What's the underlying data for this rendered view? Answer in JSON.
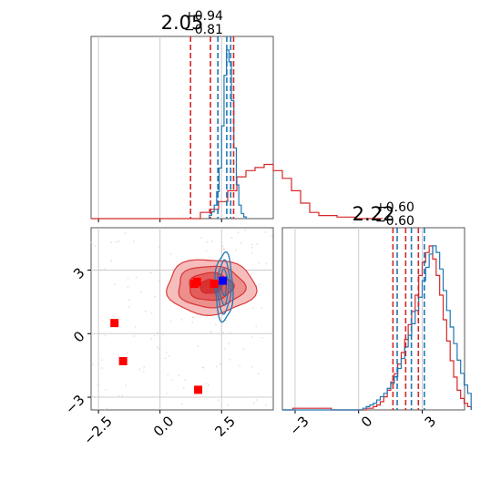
{
  "chart_data": {
    "type": "corner",
    "colors": {
      "red": "#d62728",
      "blue": "#1f77b4",
      "red_marker": "#ff0000",
      "blue_marker": "#0000ff",
      "grid": "#cccccc"
    },
    "panels": {
      "hist_x": {
        "title": {
          "median": "2.05",
          "plus": "+0.94",
          "minus": "−0.81"
        },
        "xlim": [
          -2.8,
          4.6
        ],
        "tick_values": [
          -2.5,
          0.0,
          2.5
        ],
        "red_lines": [
          1.24,
          2.05,
          2.99
        ],
        "blue_lines": [
          2.35,
          2.71,
          2.87
        ],
        "red_hist": {
          "start": -2.8,
          "width": 0.37,
          "counts": [
            0,
            0,
            0,
            0,
            0,
            0,
            0,
            0,
            0,
            0,
            0,
            0,
            0.04,
            0.06,
            0.11,
            0.18,
            0.27,
            0.31,
            0.33,
            0.35,
            0.31,
            0.26,
            0.18,
            0.1,
            0.04,
            0.02,
            0.02,
            0.01,
            0.01,
            0,
            0,
            0
          ]
        },
        "blue_hist": {
          "start": -2.8,
          "width": 0.1,
          "counts_from_2.0": [
            0.02,
            0.04,
            0.08,
            0.16,
            0.3,
            0.55,
            0.85,
            1.0,
            0.93,
            0.7,
            0.42,
            0.2,
            0.08,
            0.03,
            0.01
          ]
        }
      },
      "scatter": {
        "xlim": [
          -2.8,
          4.6
        ],
        "ylim": [
          -3.6,
          5.0
        ],
        "x_ticks": [
          "−2.5",
          "0.0",
          "2.5"
        ],
        "x_tick_values": [
          -2.5,
          0.0,
          2.5
        ],
        "y_ticks": [
          "−3",
          "0",
          "3"
        ],
        "y_tick_values": [
          -3,
          0,
          3
        ],
        "red_points": [
          [
            -1.85,
            0.5
          ],
          [
            -1.5,
            -1.3
          ],
          [
            1.55,
            -2.65
          ],
          [
            1.4,
            2.35
          ],
          [
            1.5,
            2.45
          ],
          [
            2.2,
            2.35
          ]
        ],
        "blue_points": [
          [
            2.55,
            2.5
          ]
        ],
        "red_contour_center": [
          2.05,
          2.22
        ],
        "red_contour_sigma": [
          0.9,
          0.65
        ],
        "blue_contour_center": [
          2.6,
          2.2
        ],
        "blue_contour_sigma": [
          0.18,
          0.8
        ]
      },
      "hist_y": {
        "title": {
          "median": "2.22",
          "plus": "+0.60",
          "minus": "−0.60"
        },
        "xlim": [
          -3.6,
          5.0
        ],
        "x_ticks": [
          "−3",
          "0",
          "3"
        ],
        "x_tick_values": [
          -3,
          0,
          3
        ],
        "red_lines": [
          1.62,
          2.22,
          2.82
        ],
        "blue_lines": [
          1.82,
          2.49,
          3.1
        ],
        "red_hist": {
          "start": -3.6,
          "width": 0.165,
          "counts": [
            0,
            0,
            0,
            0.01,
            0.01,
            0.01,
            0.01,
            0.01,
            0.01,
            0.01,
            0.01,
            0.01,
            0.01,
            0.01,
            0.0,
            0.0,
            0.0,
            0.0,
            0.0,
            0.0,
            0.0,
            0.0,
            0.0,
            0.0,
            0.01,
            0.01,
            0.02,
            0.03,
            0.05,
            0.08,
            0.12,
            0.17,
            0.22,
            0.28,
            0.35,
            0.43,
            0.52,
            0.6,
            0.7,
            0.82,
            0.9,
            0.96,
            1.0,
            0.92,
            0.82,
            0.7,
            0.55,
            0.42,
            0.3,
            0.2,
            0.12,
            0.07,
            0.04,
            0.02
          ]
        },
        "blue_hist": {
          "start": -3.6,
          "width": 0.165,
          "counts": [
            0,
            0,
            0,
            0,
            0,
            0,
            0,
            0,
            0,
            0,
            0,
            0,
            0,
            0,
            0,
            0,
            0,
            0,
            0,
            0,
            0,
            0,
            0,
            0.01,
            0.02,
            0.03,
            0.04,
            0.06,
            0.08,
            0.1,
            0.13,
            0.16,
            0.2,
            0.25,
            0.31,
            0.38,
            0.45,
            0.52,
            0.6,
            0.68,
            0.78,
            0.86,
            0.94,
            0.99,
            0.95,
            0.85,
            0.72,
            0.6,
            0.5,
            0.4,
            0.3,
            0.22,
            0.15,
            0.1
          ]
        }
      }
    }
  }
}
